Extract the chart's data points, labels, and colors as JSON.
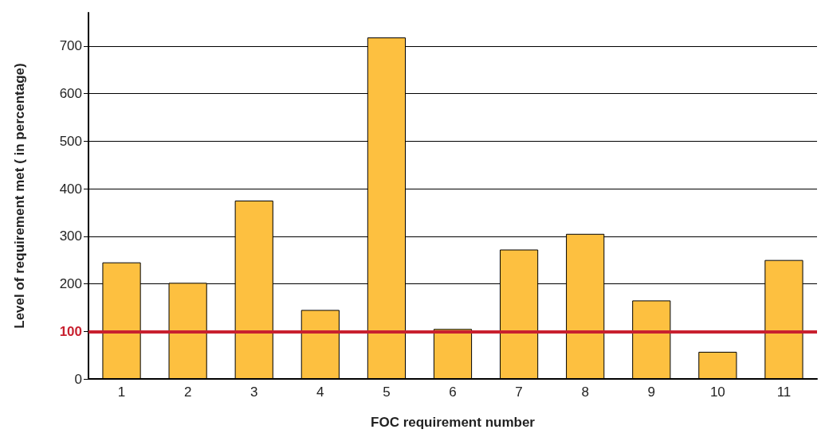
{
  "chart_data": {
    "type": "bar",
    "xlabel": "FOC requirement number",
    "ylabel": "Level of requirement met ( in percentage)",
    "categories": [
      "1",
      "2",
      "3",
      "4",
      "5",
      "6",
      "7",
      "8",
      "9",
      "10",
      "11"
    ],
    "values": [
      245,
      202,
      375,
      145,
      718,
      105,
      272,
      305,
      165,
      57,
      250
    ],
    "color": "#fdc040",
    "ylim": [
      0,
      770
    ],
    "yticks": [
      0,
      100,
      200,
      300,
      400,
      500,
      600,
      700
    ],
    "grid": "y",
    "ref_lines": [
      {
        "axis": "y",
        "value": 100,
        "label": null,
        "color": "#c8202f"
      }
    ]
  }
}
